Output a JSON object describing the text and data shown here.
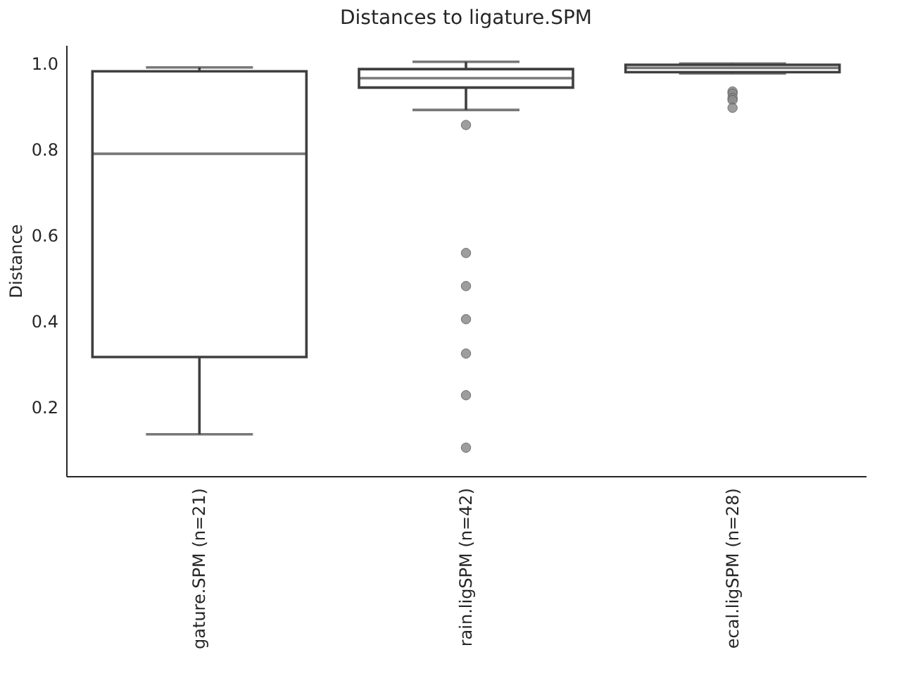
{
  "chart_data": {
    "type": "box",
    "title": "Distances to ligature.SPM",
    "ylabel": "Distance",
    "categories": [
      "gature.SPM (n=21)",
      "rain.ligSPM (n=42)",
      "ecal.ligSPM (n=28)"
    ],
    "boxes": [
      {
        "low": 0.137,
        "q1": 0.317,
        "median": 0.79,
        "q3": 0.982,
        "high": 0.991
      },
      {
        "low": 0.892,
        "q1": 0.944,
        "median": 0.966,
        "q3": 0.987,
        "high": 1.004,
        "outliers": [
          0.857,
          0.559,
          0.482,
          0.405,
          0.325,
          0.228,
          0.106
        ]
      },
      {
        "low": 0.977,
        "q1": 0.98,
        "median": 0.99,
        "q3": 0.997,
        "high": 1.0,
        "outliers": [
          0.935,
          0.93,
          0.92,
          0.915,
          0.897
        ]
      }
    ],
    "ylim": [
      0.04,
      1.043
    ],
    "yticks": [
      0.2,
      0.4,
      0.6,
      0.8,
      {
        "value": 1.0,
        "label": "1.0"
      }
    ],
    "grid": false
  }
}
